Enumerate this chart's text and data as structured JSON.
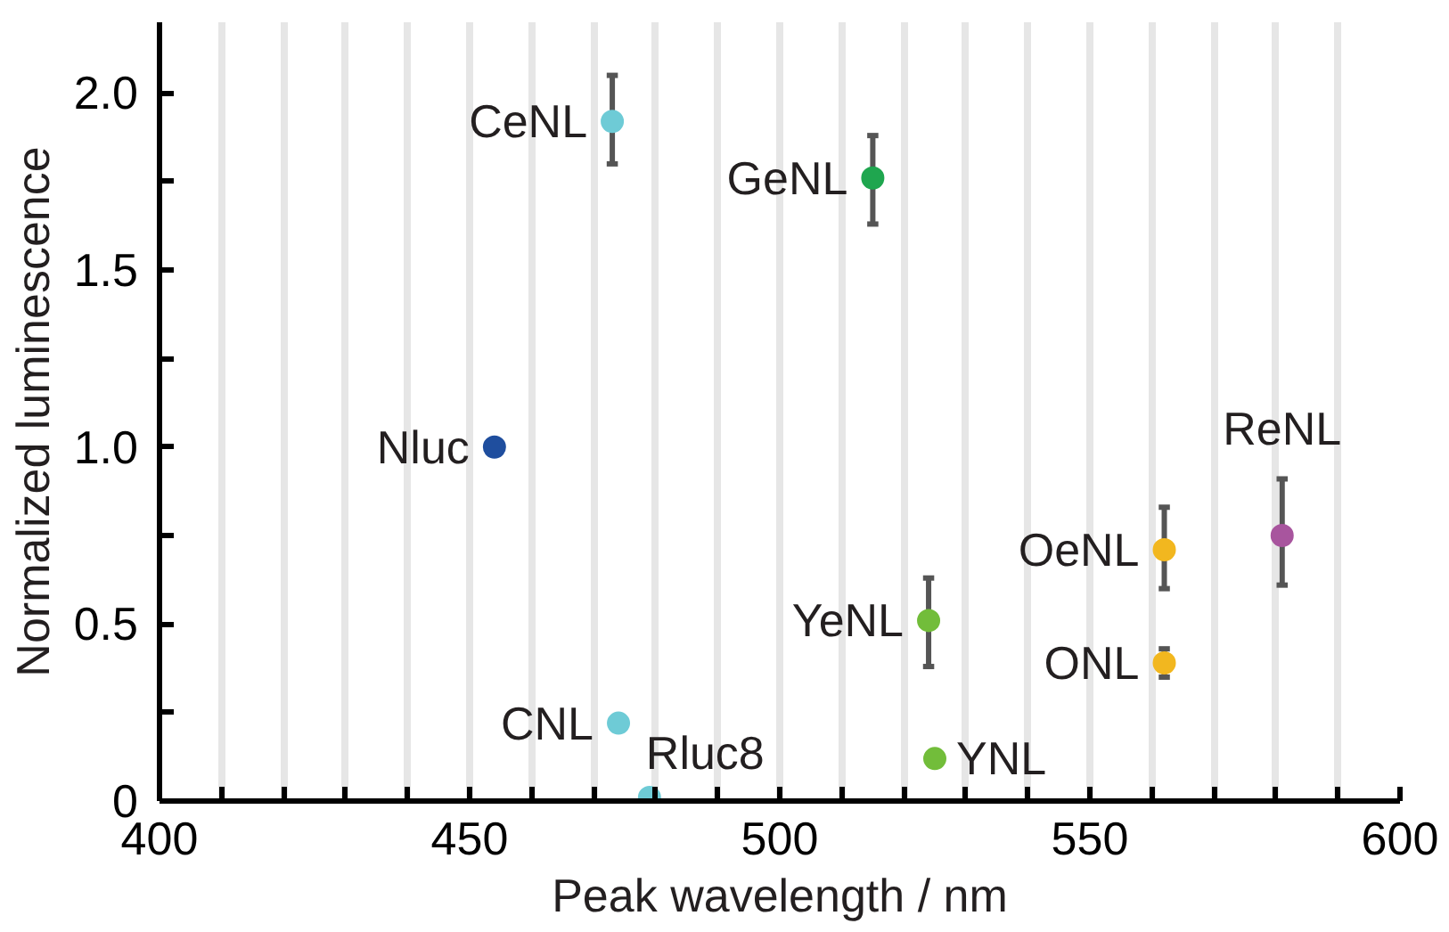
{
  "chart_data": {
    "type": "scatter",
    "xlabel": "Peak wavelength / nm",
    "ylabel": "Normalized luminescence",
    "x": [
      454,
      473,
      515,
      474,
      479,
      524,
      525,
      562,
      562,
      581
    ],
    "values": [
      1.0,
      1.92,
      1.76,
      0.22,
      0.01,
      0.51,
      0.12,
      0.71,
      0.39,
      0.75
    ],
    "errors": [
      null,
      [
        1.8,
        2.05
      ],
      [
        1.63,
        1.88
      ],
      null,
      null,
      [
        0.38,
        0.63
      ],
      null,
      [
        0.6,
        0.83
      ],
      [
        0.35,
        0.43
      ],
      [
        0.61,
        0.91
      ]
    ],
    "colors": [
      "#1f4e9e",
      "#6ecbd6",
      "#1fa64f",
      "#6ecbd6",
      "#6ecbd6",
      "#72bd3a",
      "#72bd3a",
      "#f2b71f",
      "#f2b71f",
      "#a8559e"
    ],
    "marker": "circle",
    "annotations": [
      {
        "text": "Nluc",
        "x": 454,
        "y": 1.0
      },
      {
        "text": "CeNL",
        "x": 473,
        "y": 1.92
      },
      {
        "text": "GeNL",
        "x": 515,
        "y": 1.76
      },
      {
        "text": "CNL",
        "x": 474,
        "y": 0.22
      },
      {
        "text": "Rluc8",
        "x": 479,
        "y": 0.01
      },
      {
        "text": "YeNL",
        "x": 524,
        "y": 0.51
      },
      {
        "text": "YNL",
        "x": 525,
        "y": 0.12
      },
      {
        "text": "OeNL",
        "x": 562,
        "y": 0.71
      },
      {
        "text": "ONL",
        "x": 562,
        "y": 0.39
      },
      {
        "text": "ReNL",
        "x": 581,
        "y": 0.75
      }
    ],
    "xlim": [
      400,
      600
    ],
    "ylim": [
      0,
      2.2
    ],
    "xticks": [
      400,
      {
        "value": 410,
        "label": null
      },
      {
        "value": 420,
        "label": null
      },
      {
        "value": 430,
        "label": null
      },
      {
        "value": 440,
        "label": null
      },
      450,
      {
        "value": 460,
        "label": null
      },
      {
        "value": 470,
        "label": null
      },
      {
        "value": 480,
        "label": null
      },
      {
        "value": 490,
        "label": null
      },
      500,
      {
        "value": 510,
        "label": null
      },
      {
        "value": 520,
        "label": null
      },
      {
        "value": 530,
        "label": null
      },
      {
        "value": 540,
        "label": null
      },
      550,
      {
        "value": 560,
        "label": null
      },
      {
        "value": 570,
        "label": null
      },
      {
        "value": 580,
        "label": null
      },
      {
        "value": 590,
        "label": null
      },
      600
    ],
    "yticks": [
      0,
      {
        "value": 0.25,
        "label": null
      },
      {
        "value": 0.5,
        "label": "0.5"
      },
      {
        "value": 0.75,
        "label": null
      },
      {
        "value": 1.0,
        "label": "1.0"
      },
      {
        "value": 1.25,
        "label": null
      },
      {
        "value": 1.5,
        "label": "1.5"
      },
      {
        "value": 1.75,
        "label": null
      },
      {
        "value": 2.0,
        "label": "2.0"
      }
    ],
    "grid": "x"
  }
}
